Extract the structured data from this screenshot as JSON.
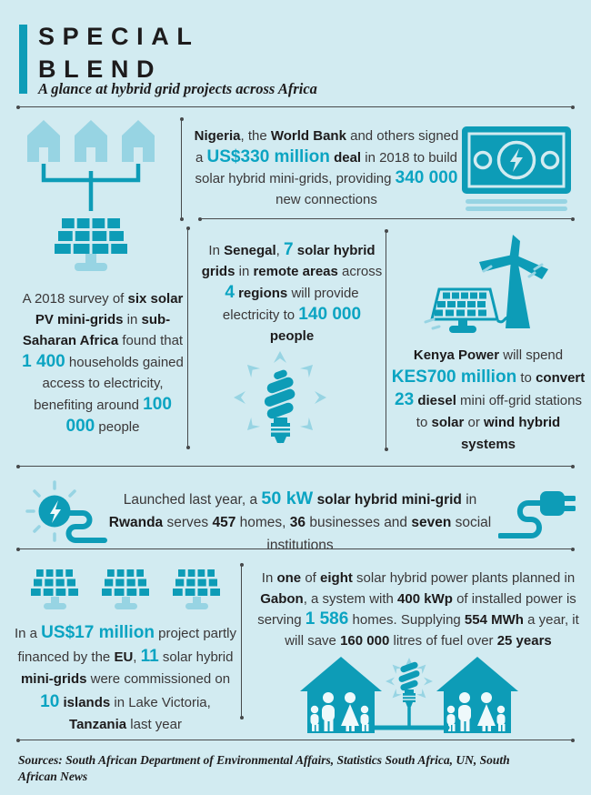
{
  "header": {
    "title_line1": "SPECIAL",
    "title_line2": "BLEND",
    "subtitle": "A glance at hybrid grid projects across Africa"
  },
  "colors": {
    "background": "#d2ebf1",
    "teal": "#0d9cb7",
    "lightblue": "#97d4e3",
    "highlight": "#0ba4c2",
    "ink": "#3a3738",
    "ink_strong": "#1d1b1c",
    "line": "#47494b"
  },
  "icons": {
    "houses_to_solar_grid": "three houses wired to a solar panel",
    "banknote": "banknote with lightning bolt",
    "solar_panel": "solar photovoltaic panel",
    "cfl_bulb_burst": "energy-saving bulb with rays",
    "wind_and_solar": "wind turbine with solar panel",
    "sun_bolt_cord": "sun circle with lightning bolt and cord",
    "power_plug": "power plug with cord",
    "family_houses": "two houses with families and bulb between"
  },
  "sections": {
    "nigeria": {
      "segments": [
        {
          "t": "Nigeria",
          "s": "b"
        },
        {
          "t": ", the "
        },
        {
          "t": "World Bank",
          "s": "b"
        },
        {
          "t": " and others signed a "
        },
        {
          "t": "US$330 million",
          "s": "hl"
        },
        {
          "t": " "
        },
        {
          "t": "deal",
          "s": "b"
        },
        {
          "t": " in 2018 to build solar hybrid mini-grids, providing "
        },
        {
          "t": "340 000",
          "s": "hl"
        },
        {
          "t": " new connections"
        }
      ]
    },
    "survey": {
      "segments": [
        {
          "t": "A 2018 survey of "
        },
        {
          "t": "six solar PV mini-grids",
          "s": "b"
        },
        {
          "t": " in "
        },
        {
          "t": "sub-Saharan Africa",
          "s": "b"
        },
        {
          "t": " found that "
        },
        {
          "t": "1 400",
          "s": "hl"
        },
        {
          "t": " households gained access to electricity, benefiting around "
        },
        {
          "t": "100 000",
          "s": "hl"
        },
        {
          "t": " people"
        }
      ]
    },
    "senegal": {
      "segments": [
        {
          "t": "In "
        },
        {
          "t": "Senegal",
          "s": "b"
        },
        {
          "t": ", "
        },
        {
          "t": "7",
          "s": "hl"
        },
        {
          "t": " "
        },
        {
          "t": "solar hybrid grids",
          "s": "b"
        },
        {
          "t": " in "
        },
        {
          "t": "remote areas",
          "s": "b"
        },
        {
          "t": " across "
        },
        {
          "t": "4",
          "s": "hl"
        },
        {
          "t": " "
        },
        {
          "t": "regions",
          "s": "b"
        },
        {
          "t": " will provide electricity to "
        },
        {
          "t": "140 000",
          "s": "hl"
        },
        {
          "t": " "
        },
        {
          "t": "people",
          "s": "b"
        }
      ]
    },
    "kenya": {
      "segments": [
        {
          "t": "Kenya Power",
          "s": "b"
        },
        {
          "t": " will spend "
        },
        {
          "t": "KES700 million",
          "s": "hl"
        },
        {
          "t": " to "
        },
        {
          "t": "convert",
          "s": "b"
        },
        {
          "t": " "
        },
        {
          "t": "23",
          "s": "hl"
        },
        {
          "t": " "
        },
        {
          "t": "diesel",
          "s": "b"
        },
        {
          "t": " mini off-grid stations to "
        },
        {
          "t": "solar",
          "s": "b"
        },
        {
          "t": " or "
        },
        {
          "t": "wind hybrid systems",
          "s": "b"
        }
      ]
    },
    "rwanda": {
      "segments": [
        {
          "t": "Launched last year, a "
        },
        {
          "t": "50 kW",
          "s": "hl"
        },
        {
          "t": " "
        },
        {
          "t": "solar hybrid mini-grid",
          "s": "b"
        },
        {
          "t": " in "
        },
        {
          "t": "Rwanda",
          "s": "b"
        },
        {
          "t": " serves "
        },
        {
          "t": "457",
          "s": "b"
        },
        {
          "t": " homes, "
        },
        {
          "t": "36",
          "s": "b"
        },
        {
          "t": " businesses and "
        },
        {
          "t": "seven",
          "s": "b"
        },
        {
          "t": " social institutions"
        }
      ]
    },
    "tanzania": {
      "segments": [
        {
          "t": "In a "
        },
        {
          "t": "US$17 million",
          "s": "hl"
        },
        {
          "t": " project partly financed by the "
        },
        {
          "t": "EU",
          "s": "b"
        },
        {
          "t": ", "
        },
        {
          "t": "11",
          "s": "hl"
        },
        {
          "t": " solar hybrid "
        },
        {
          "t": "mini-grids",
          "s": "b"
        },
        {
          "t": " were commissioned on "
        },
        {
          "t": "10",
          "s": "hl"
        },
        {
          "t": " "
        },
        {
          "t": "islands",
          "s": "b"
        },
        {
          "t": " in Lake Victoria, "
        },
        {
          "t": "Tanzania",
          "s": "b"
        },
        {
          "t": " last year"
        }
      ]
    },
    "gabon": {
      "segments": [
        {
          "t": "In "
        },
        {
          "t": "one",
          "s": "b"
        },
        {
          "t": " of "
        },
        {
          "t": "eight",
          "s": "b"
        },
        {
          "t": " solar hybrid power plants planned in "
        },
        {
          "t": "Gabon",
          "s": "b"
        },
        {
          "t": ", a system with "
        },
        {
          "t": "400 kWp",
          "s": "b"
        },
        {
          "t": " of installed power is serving "
        },
        {
          "t": "1 586",
          "s": "hl"
        },
        {
          "t": " homes. Supplying "
        },
        {
          "t": "554 MWh",
          "s": "b"
        },
        {
          "t": " a year, it will save "
        },
        {
          "t": "160 000",
          "s": "b"
        },
        {
          "t": " litres of fuel over "
        },
        {
          "t": "25 years",
          "s": "b"
        }
      ]
    }
  },
  "sources": {
    "text": "Sources: South African Department of Environmental Affairs, Statistics South Africa, UN, South African News"
  }
}
